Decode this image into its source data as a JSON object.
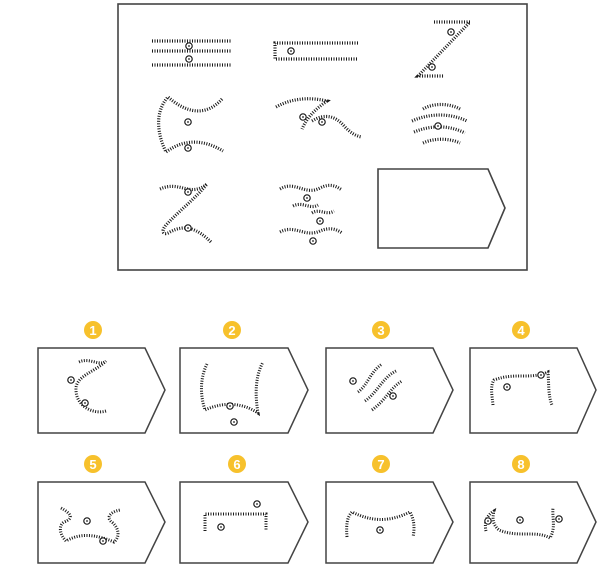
{
  "options": [
    {
      "label": "1"
    },
    {
      "label": "2"
    },
    {
      "label": "3"
    },
    {
      "label": "4"
    },
    {
      "label": "5"
    },
    {
      "label": "6"
    },
    {
      "label": "7"
    },
    {
      "label": "8"
    }
  ],
  "colors": {
    "badge": "#f7c12c",
    "stroke": "#1a1a1a",
    "page": "#ffffff"
  }
}
